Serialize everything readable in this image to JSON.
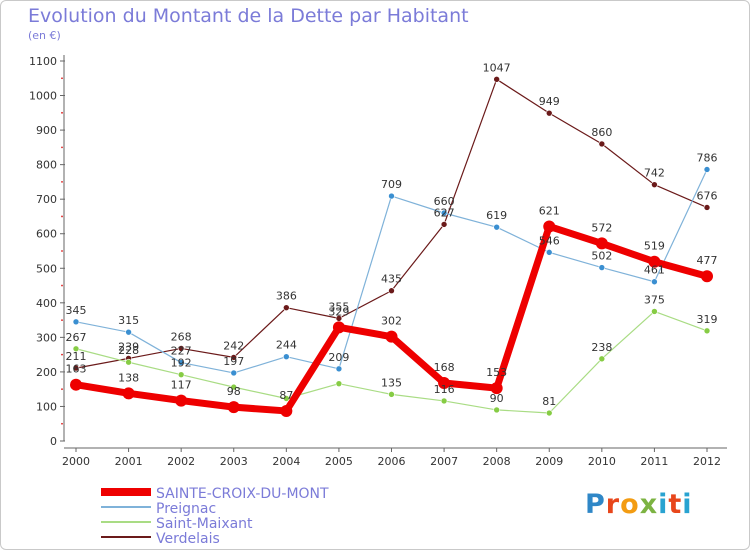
{
  "title": "Evolution du Montant de la Dette par Habitant",
  "subtitle": "(en €)",
  "logo": {
    "text": "Proxiti",
    "colors": [
      "#2f87c7",
      "#e8461b",
      "#f39c12",
      "#7cb342",
      "#29a3d1",
      "#e8461b",
      "#29a3d1"
    ]
  },
  "chart_data": {
    "type": "line",
    "title": "Evolution du Montant de la Dette par Habitant",
    "unit": "(en €)",
    "x": [
      "2000",
      "2001",
      "2002",
      "2003",
      "2004",
      "2005",
      "2006",
      "2007",
      "2008",
      "2009",
      "2010",
      "2011",
      "2012"
    ],
    "y_ticks": [
      0,
      100,
      200,
      300,
      400,
      500,
      600,
      700,
      800,
      900,
      1000,
      1100
    ],
    "ylim": [
      0,
      1100
    ],
    "grid": false,
    "legend_position": "bottom-left",
    "series": [
      {
        "name": "Verdelais",
        "color": "#6b1a1a",
        "point_color": "#6b1a1a",
        "width": 1.2,
        "values": [
          211,
          239,
          268,
          242,
          386,
          355,
          435,
          627,
          1047,
          949,
          860,
          742,
          676
        ],
        "labels": [
          "211",
          "239",
          "268",
          "242",
          "386",
          "355",
          "435",
          "627",
          "1047",
          "949",
          "860",
          "742",
          "676"
        ]
      },
      {
        "name": "Saint-Maixant",
        "color": "#a9dc84",
        "point_color": "#86cc44",
        "width": 1.2,
        "values": [
          267,
          228,
          192,
          156,
          123,
          166,
          135,
          116,
          90,
          81,
          238,
          375,
          319
        ],
        "labels": [
          "267",
          "228",
          "192",
          "",
          "",
          "",
          "135",
          "116",
          "90",
          "81",
          "238",
          "375",
          "319"
        ]
      },
      {
        "name": "Preignac",
        "color": "#7fb2d9",
        "point_color": "#3a8fd1",
        "width": 1.2,
        "values": [
          345,
          315,
          227,
          197,
          244,
          209,
          709,
          660,
          619,
          546,
          502,
          461,
          786
        ],
        "labels": [
          "345",
          "315",
          "227",
          "197",
          "244",
          "209",
          "709",
          "660",
          "619",
          "546",
          "502",
          "461",
          "786"
        ]
      },
      {
        "name": "SAINTE-CROIX-DU-MONT",
        "color": "#ee0000",
        "point_color": "#ee0000",
        "width": 7,
        "values": [
          163,
          138,
          117,
          98,
          87,
          329,
          302,
          168,
          153,
          621,
          572,
          519,
          477
        ],
        "labels": [
          "163",
          "138",
          "117",
          "98",
          "87",
          "329",
          "302",
          "168",
          "153",
          "621",
          "572",
          "519",
          "477"
        ]
      }
    ],
    "legend_order": [
      "SAINTE-CROIX-DU-MONT",
      "Preignac",
      "Saint-Maixant",
      "Verdelais"
    ]
  }
}
